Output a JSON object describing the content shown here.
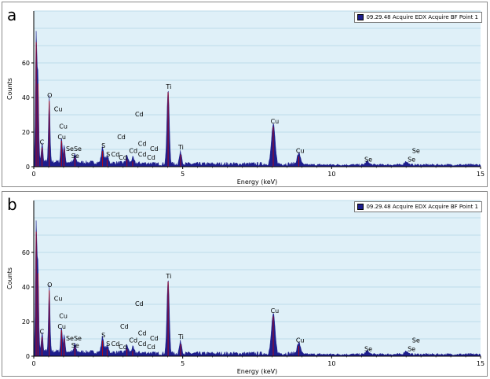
{
  "chart_data": [
    {
      "id": "a",
      "type": "line",
      "panel_label": "a",
      "legend": "09.29.48 Acquire EDX Acquire BF Point 1",
      "xlabel": "Energy (keV)",
      "ylabel": "Counts",
      "xlim": [
        0,
        15
      ],
      "ylim": [
        0,
        90
      ],
      "xticks": [
        "0",
        "5",
        "10",
        "15"
      ],
      "yticks": [
        "0",
        "20",
        "40",
        "60"
      ],
      "grid": true,
      "peaks": [
        {
          "x": 0.08,
          "y": 72
        },
        {
          "x": 0.14,
          "y": 48
        },
        {
          "x": 0.28,
          "y": 11
        },
        {
          "x": 0.52,
          "y": 38
        },
        {
          "x": 0.93,
          "y": 15
        },
        {
          "x": 1.02,
          "y": 10
        },
        {
          "x": 1.38,
          "y": 5
        },
        {
          "x": 2.31,
          "y": 9
        },
        {
          "x": 2.46,
          "y": 4
        },
        {
          "x": 3.13,
          "y": 4
        },
        {
          "x": 3.32,
          "y": 3
        },
        {
          "x": 4.51,
          "y": 43
        },
        {
          "x": 4.93,
          "y": 7
        },
        {
          "x": 8.04,
          "y": 23
        },
        {
          "x": 8.9,
          "y": 6
        },
        {
          "x": 11.2,
          "y": 2
        },
        {
          "x": 12.5,
          "y": 2
        }
      ],
      "annotations": [
        {
          "text": "C",
          "x": 0.2,
          "y": 13
        },
        {
          "text": "O",
          "x": 0.45,
          "y": 40
        },
        {
          "text": "Cu",
          "x": 0.68,
          "y": 32
        },
        {
          "text": "Cu",
          "x": 0.85,
          "y": 22
        },
        {
          "text": "Cu",
          "x": 0.8,
          "y": 16
        },
        {
          "text": "SeSe",
          "x": 1.08,
          "y": 9
        },
        {
          "text": "Se",
          "x": 1.26,
          "y": 5
        },
        {
          "text": "S",
          "x": 2.27,
          "y": 11
        },
        {
          "text": "S",
          "x": 2.43,
          "y": 6
        },
        {
          "text": "Cd",
          "x": 2.6,
          "y": 6
        },
        {
          "text": "Cd",
          "x": 2.85,
          "y": 4
        },
        {
          "text": "Cd",
          "x": 2.8,
          "y": 16
        },
        {
          "text": "Cd",
          "x": 3.2,
          "y": 8
        },
        {
          "text": "Cd",
          "x": 3.5,
          "y": 12
        },
        {
          "text": "Cd",
          "x": 3.5,
          "y": 6
        },
        {
          "text": "Cd",
          "x": 3.8,
          "y": 4
        },
        {
          "text": "Cd",
          "x": 3.9,
          "y": 9
        },
        {
          "text": "Cd",
          "x": 3.4,
          "y": 29
        },
        {
          "text": "Ti",
          "x": 4.44,
          "y": 45
        },
        {
          "text": "Ti",
          "x": 4.85,
          "y": 10
        },
        {
          "text": "Cu",
          "x": 7.95,
          "y": 25
        },
        {
          "text": "Cu",
          "x": 8.8,
          "y": 8
        },
        {
          "text": "Se",
          "x": 11.1,
          "y": 3
        },
        {
          "text": "Se",
          "x": 12.7,
          "y": 8
        },
        {
          "text": "Se",
          "x": 12.55,
          "y": 3
        }
      ]
    },
    {
      "id": "b",
      "type": "line",
      "panel_label": "b",
      "legend": "09.29.48 Acquire EDX Acquire BF Point 1",
      "xlabel": "Energy (keV)",
      "ylabel": "Counts",
      "xlim": [
        0,
        15
      ],
      "ylim": [
        0,
        90
      ],
      "xticks": [
        "0",
        "5",
        "10",
        "15"
      ],
      "yticks": [
        "0",
        "20",
        "40",
        "60"
      ],
      "grid": true,
      "peaks": [
        {
          "x": 0.08,
          "y": 72
        },
        {
          "x": 0.14,
          "y": 48
        },
        {
          "x": 0.28,
          "y": 11
        },
        {
          "x": 0.52,
          "y": 38
        },
        {
          "x": 0.93,
          "y": 15
        },
        {
          "x": 1.02,
          "y": 10
        },
        {
          "x": 1.38,
          "y": 5
        },
        {
          "x": 2.31,
          "y": 9
        },
        {
          "x": 2.46,
          "y": 4
        },
        {
          "x": 3.13,
          "y": 4
        },
        {
          "x": 3.32,
          "y": 3
        },
        {
          "x": 4.51,
          "y": 43
        },
        {
          "x": 4.93,
          "y": 7
        },
        {
          "x": 8.04,
          "y": 23
        },
        {
          "x": 8.9,
          "y": 6
        },
        {
          "x": 11.2,
          "y": 2
        },
        {
          "x": 12.5,
          "y": 2
        }
      ],
      "annotations": [
        {
          "text": "C",
          "x": 0.2,
          "y": 13
        },
        {
          "text": "O",
          "x": 0.45,
          "y": 40
        },
        {
          "text": "Cu",
          "x": 0.68,
          "y": 32
        },
        {
          "text": "Cu",
          "x": 0.85,
          "y": 22
        },
        {
          "text": "Cu",
          "x": 0.8,
          "y": 16
        },
        {
          "text": "SeSe",
          "x": 1.08,
          "y": 9
        },
        {
          "text": "Se",
          "x": 1.26,
          "y": 5
        },
        {
          "text": "S",
          "x": 2.27,
          "y": 11
        },
        {
          "text": "S",
          "x": 2.43,
          "y": 6
        },
        {
          "text": "Cd",
          "x": 2.6,
          "y": 6
        },
        {
          "text": "Cd",
          "x": 2.85,
          "y": 4
        },
        {
          "text": "Cd",
          "x": 2.9,
          "y": 16
        },
        {
          "text": "Cd",
          "x": 3.2,
          "y": 8
        },
        {
          "text": "Cd",
          "x": 3.5,
          "y": 12
        },
        {
          "text": "Cd",
          "x": 3.5,
          "y": 6
        },
        {
          "text": "Cd",
          "x": 3.8,
          "y": 4
        },
        {
          "text": "Cd",
          "x": 3.9,
          "y": 9
        },
        {
          "text": "Cd",
          "x": 3.4,
          "y": 29
        },
        {
          "text": "Ti",
          "x": 4.44,
          "y": 45
        },
        {
          "text": "Ti",
          "x": 4.85,
          "y": 10
        },
        {
          "text": "Cu",
          "x": 7.95,
          "y": 25
        },
        {
          "text": "Cu",
          "x": 8.8,
          "y": 8
        },
        {
          "text": "Se",
          "x": 11.1,
          "y": 3
        },
        {
          "text": "Se",
          "x": 12.7,
          "y": 8
        },
        {
          "text": "Se",
          "x": 12.55,
          "y": 3
        }
      ]
    }
  ],
  "colors": {
    "plot_background": "#dff0f8",
    "gridline": "#bcdcea",
    "spectrum_fill": "#1e1e8c",
    "peak_marker": "#cc0000"
  }
}
